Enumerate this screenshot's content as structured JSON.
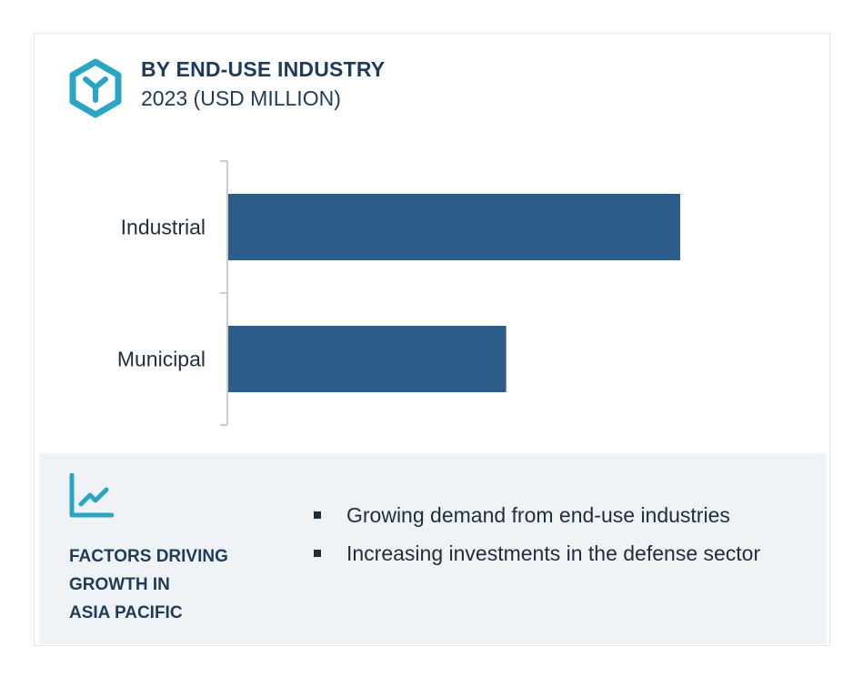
{
  "header": {
    "title": "BY END-USE INDUSTRY",
    "subtitle": "2023 (USD MILLION)",
    "icon": "hexagon-logo-icon"
  },
  "colors": {
    "bar": "#2c5e89",
    "accent": "#2aa6c4",
    "heading": "#1f3b5a",
    "panel": "#f0f3f6",
    "axis": "#c9ccd0"
  },
  "chart_data": {
    "type": "bar",
    "orientation": "horizontal",
    "categories": [
      "Industrial",
      "Municipal"
    ],
    "values": [
      1000,
      615
    ],
    "xlim": [
      0,
      1000
    ],
    "title": "BY END-USE INDUSTRY",
    "subtitle": "2023 (USD MILLION)",
    "value_labels_shown": false,
    "grid": false
  },
  "factors": {
    "icon": "trend-chart-icon",
    "label_lines": [
      "FACTORS DRIVING",
      "GROWTH IN",
      "ASIA PACIFIC"
    ],
    "bullets": [
      "Growing demand from end-use industries",
      "Increasing investments in the defense sector"
    ]
  }
}
